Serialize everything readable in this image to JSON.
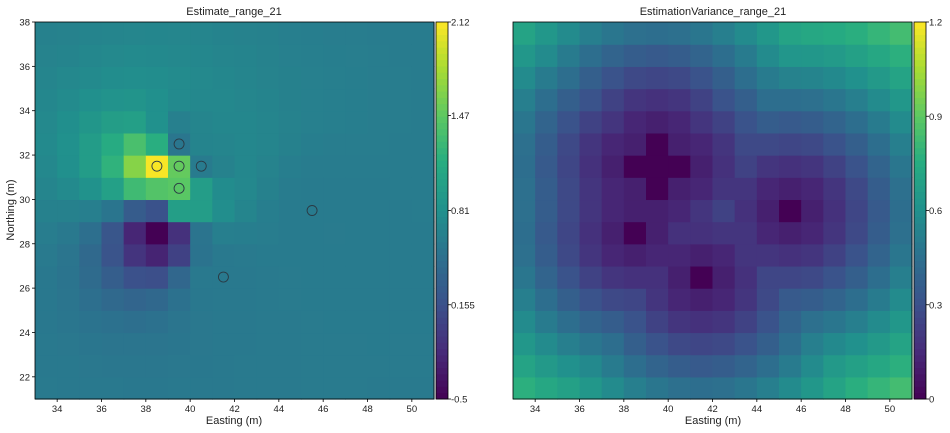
{
  "chart_data": [
    {
      "type": "heatmap",
      "title": "Estimate_range_21",
      "xlabel": "Easting (m)",
      "ylabel": "Northing (m)",
      "xlim": [
        33,
        51
      ],
      "ylim": [
        21,
        38
      ],
      "xticks": [
        34,
        36,
        38,
        40,
        42,
        44,
        46,
        48,
        50
      ],
      "yticks": [
        22,
        24,
        26,
        28,
        30,
        32,
        34,
        36,
        38
      ],
      "colormap": "viridis",
      "colorbar": {
        "min": -0.5,
        "max": 2.12,
        "ticks": [
          -0.5,
          0.155,
          0.81,
          1.47,
          2.12
        ],
        "tick_labels": [
          "-0.5",
          "0.155",
          "0.81",
          "1.47",
          "2.12"
        ]
      },
      "samples": [
        {
          "x": 38.5,
          "y": 31.5,
          "value": 2.1
        },
        {
          "x": 39.5,
          "y": 31.5,
          "value": 1.5
        },
        {
          "x": 39.5,
          "y": 30.5,
          "value": 1.45
        },
        {
          "x": 39.5,
          "y": 32.5,
          "value": 0.55
        },
        {
          "x": 40.5,
          "y": 31.5,
          "value": 0.6
        },
        {
          "x": 38.5,
          "y": 28.5,
          "value": -0.5
        },
        {
          "x": 45.5,
          "y": 29.5,
          "value": 0.6
        },
        {
          "x": 41.5,
          "y": 26.5,
          "value": 0.58
        }
      ],
      "markers": [
        {
          "x": 38.5,
          "y": 31.5
        },
        {
          "x": 39.5,
          "y": 31.5
        },
        {
          "x": 39.5,
          "y": 30.5
        },
        {
          "x": 39.5,
          "y": 32.5
        },
        {
          "x": 40.5,
          "y": 31.5
        },
        {
          "x": 45.5,
          "y": 29.5
        },
        {
          "x": 41.5,
          "y": 26.5
        }
      ]
    },
    {
      "type": "heatmap",
      "title": "EstimationVariance_range_21",
      "xlabel": "Easting (m)",
      "ylabel": "",
      "xlim": [
        33,
        51
      ],
      "ylim": [
        21,
        38
      ],
      "xticks": [
        34,
        36,
        38,
        40,
        42,
        44,
        46,
        48,
        50
      ],
      "colormap": "viridis",
      "colorbar": {
        "min": 0,
        "max": 1.2,
        "ticks": [
          0,
          0.3,
          0.6,
          0.9,
          1.2
        ],
        "tick_labels": [
          "0",
          "0.3",
          "0.6",
          "0.9",
          "1.2"
        ]
      },
      "zero_variance_points": [
        {
          "x": 39.5,
          "y": 32.5
        },
        {
          "x": 38.5,
          "y": 31.5
        },
        {
          "x": 39.5,
          "y": 31.5
        },
        {
          "x": 40.5,
          "y": 31.5
        },
        {
          "x": 39.5,
          "y": 30.5
        },
        {
          "x": 45.5,
          "y": 29.5
        },
        {
          "x": 38.5,
          "y": 28.5
        },
        {
          "x": 41.5,
          "y": 26.5
        }
      ]
    }
  ]
}
